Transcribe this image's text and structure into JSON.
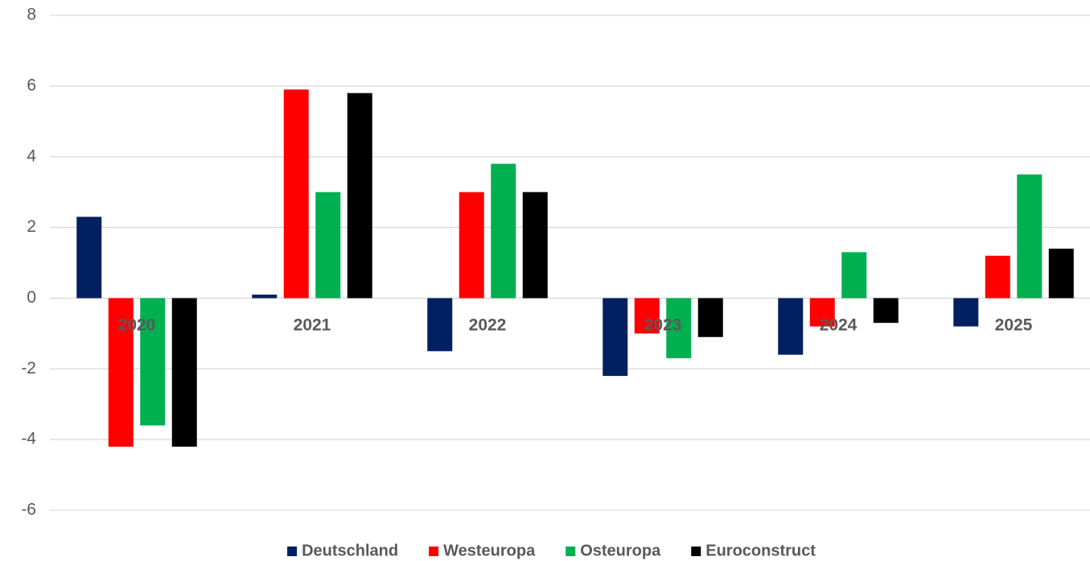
{
  "chart_data": {
    "type": "bar",
    "categories": [
      "2020",
      "2021",
      "2022",
      "2023",
      "2024",
      "2025"
    ],
    "series": [
      {
        "name": "Deutschland",
        "color": "#002060",
        "values": [
          2.3,
          0.1,
          -1.5,
          -2.2,
          -1.6,
          -0.8
        ]
      },
      {
        "name": "Westeuropa",
        "color": "#ff0000",
        "values": [
          -4.2,
          5.9,
          3.0,
          -1.0,
          -0.8,
          1.2
        ]
      },
      {
        "name": "Osteuropa",
        "color": "#00b050",
        "values": [
          -3.6,
          3.0,
          3.8,
          -1.7,
          1.3,
          3.5
        ]
      },
      {
        "name": "Euroconstruct",
        "color": "#000000",
        "values": [
          -4.2,
          5.8,
          3.0,
          -1.1,
          -0.7,
          1.4
        ]
      }
    ],
    "ylim": [
      -6,
      8
    ],
    "yticks": [
      -6,
      -4,
      -2,
      0,
      2,
      4,
      6,
      8
    ],
    "grid": true,
    "legend": "bottom"
  }
}
